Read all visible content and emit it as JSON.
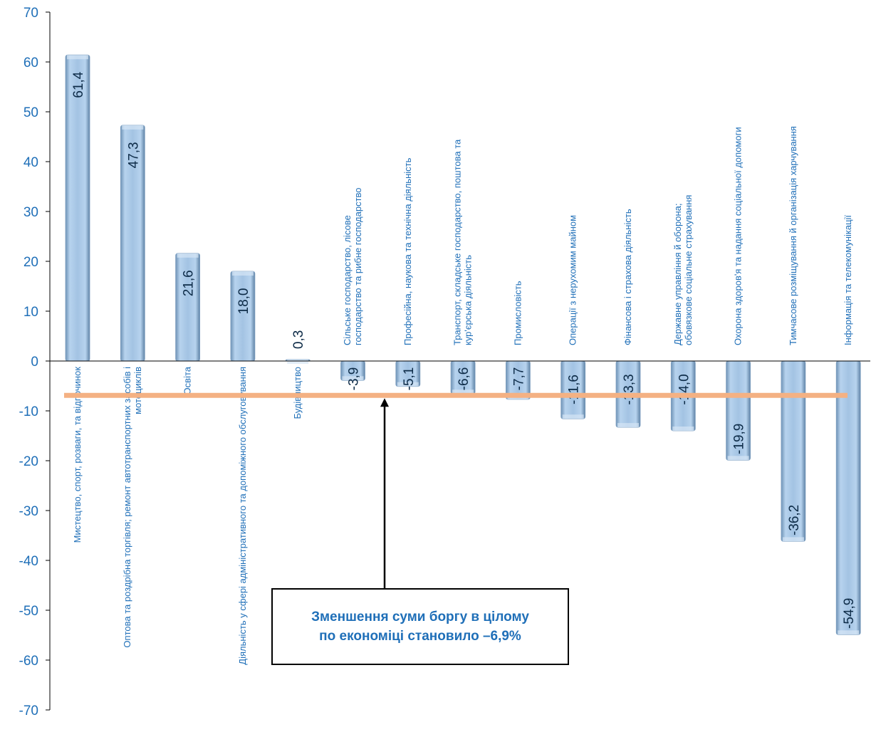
{
  "chart_data": {
    "type": "bar",
    "categories": [
      "Мистецтво, спорт, розваги, та відпочинок",
      "Оптова та роздрібна торгівля; ремонт автотранспортних засобів і мотоциклів",
      "Освіта",
      "Діяльність у сфері адміністративного та допоміжного обслуговування",
      "Будівництво",
      "Сільське господарство, лісове господарство та рибне господарство",
      "Професійна, наукова та технічна діяльність",
      "Транспорт, складське господарство, поштова та кур'єрська діяльність",
      "Промисловість",
      "Операції з нерухомим майном",
      "Фінансова і страхова діяльність",
      "Державне управління й оборона; обовязкове соціальне страхування",
      "Охорона здоров'я та надання соціальної допомоги",
      "Тимчасове розміщування й організація харчування",
      "Інформація та телекомунікації"
    ],
    "category_label_lines": [
      [
        "Мистецтво, спорт, розваги, та відпочинок"
      ],
      [
        "Оптова та роздрібна торгівля; ремонт автотранспортних засобів і",
        "мотоциклів"
      ],
      [
        "Освіта"
      ],
      [
        "Діяльність у сфері адміністративного  та допоміжного обслуговування"
      ],
      [
        "Будівництво"
      ],
      [
        "Сільське господарство, лісове",
        "господарство та рибне господарство"
      ],
      [
        "Професійна, наукова та технічна діяльність"
      ],
      [
        "Транспорт, складське господарство, поштова та",
        "кур'єрська діяльність"
      ],
      [
        "Промисловість"
      ],
      [
        "Операції з нерухомим майном"
      ],
      [
        "Фінансова і страхова діяльність"
      ],
      [
        "Державне управління й оборона;",
        "обовязкове соціальне страхування"
      ],
      [
        "Охорона здоров'я та надання соціальної допомоги"
      ],
      [
        "Тимчасове розміщування й організація харчування"
      ],
      [
        "Інформація та телекомунікації"
      ]
    ],
    "values": [
      61.4,
      47.3,
      21.6,
      18.0,
      0.3,
      -3.9,
      -5.1,
      -6.6,
      -7.7,
      -11.6,
      -13.3,
      -14.0,
      -19.9,
      -36.2,
      -54.9
    ],
    "value_labels": [
      "61,4",
      "47,3",
      "21,6",
      "18,0",
      "0,3",
      "-3,9",
      "-5,1",
      "-6,6",
      "-7,7",
      "-11,6",
      "-13,3",
      "-14,0",
      "-19,9",
      "-36,2",
      "-54,9"
    ],
    "ylim": [
      -70,
      70
    ],
    "yticks": [
      -70,
      -60,
      -50,
      -40,
      -30,
      -20,
      -10,
      0,
      10,
      20,
      30,
      40,
      50,
      60,
      70
    ],
    "average_line": -6.9,
    "title": "",
    "xlabel": "",
    "ylabel": "",
    "legend": "none",
    "grid": false
  },
  "callout": {
    "line1": "Зменшення суми боргу в цілому",
    "line2": "по економіці становило –6,9%"
  },
  "colors": {
    "bar": "#a9c8e6",
    "bar_dark": "#6f93b6",
    "axis_text": "#1f6fb8",
    "value_text": "#0d2b47",
    "average_line": "#f4b183"
  }
}
